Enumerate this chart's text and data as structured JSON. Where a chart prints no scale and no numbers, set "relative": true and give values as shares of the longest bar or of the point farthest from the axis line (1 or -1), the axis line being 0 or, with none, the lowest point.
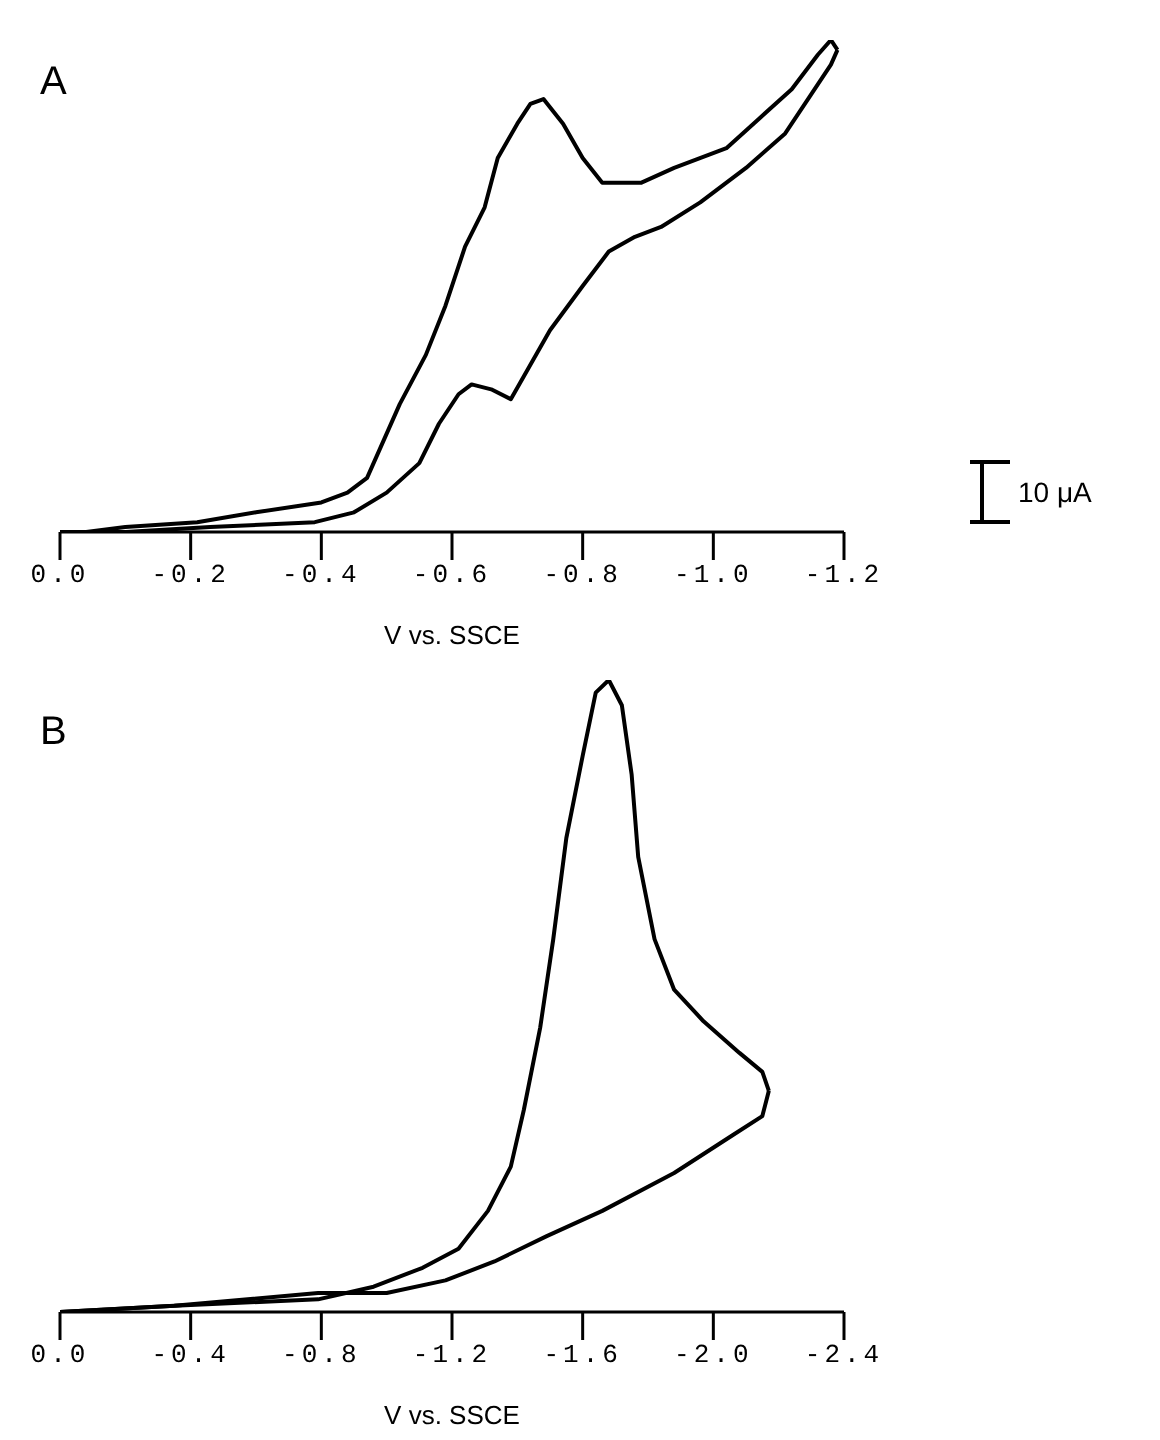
{
  "chart_data": [
    {
      "type": "line",
      "title": "A",
      "xlabel": "V vs. SSCE",
      "relative": true,
      "annotations": [
        "10 μA"
      ],
      "series": [
        {
          "color": "#000000",
          "x": [
            0,
            -0.1,
            -0.23,
            -0.39,
            -0.45,
            -0.5,
            -0.55,
            -0.58,
            -0.61,
            -0.63,
            -0.66,
            -0.69,
            -0.72,
            -0.75,
            -0.8,
            -0.84,
            -0.88,
            -0.92,
            -0.98,
            -1.05,
            -1.11,
            -1.15,
            -1.18,
            -1.19
          ],
          "values": [
            0,
            0,
            0.01,
            0.02,
            0.04,
            0.08,
            0.14,
            0.22,
            0.28,
            0.3,
            0.29,
            0.27,
            0.34,
            0.41,
            0.5,
            0.57,
            0.6,
            0.62,
            0.67,
            0.74,
            0.81,
            0.89,
            0.95,
            0.98
          ]
        },
        {
          "color": "#000000",
          "x": [
            -1.19,
            -1.18,
            -1.16,
            -1.12,
            -1.07,
            -1.02,
            -0.94,
            -0.89,
            -0.83,
            -0.8,
            -0.77,
            -0.74,
            -0.72,
            -0.7,
            -0.67,
            -0.65,
            -0.62,
            -0.59,
            -0.56,
            -0.52,
            -0.49,
            -0.47,
            -0.44,
            -0.4,
            -0.3,
            -0.21,
            -0.1,
            -0.04,
            0
          ],
          "values": [
            0.98,
            1,
            0.97,
            0.9,
            0.84,
            0.78,
            0.74,
            0.71,
            0.71,
            0.76,
            0.83,
            0.88,
            0.87,
            0.83,
            0.76,
            0.66,
            0.58,
            0.46,
            0.36,
            0.26,
            0.17,
            0.11,
            0.08,
            0.06,
            0.04,
            0.02,
            0.01,
            0,
            0
          ]
        }
      ],
      "xlim": [
        0,
        -1.2
      ],
      "xticks": [
        {
          "value": 0,
          "label": "0.0"
        },
        {
          "value": -0.2,
          "label": "-0.2"
        },
        {
          "value": -0.4,
          "label": "-0.4"
        },
        {
          "value": -0.6,
          "label": "-0.6"
        },
        {
          "value": -0.8,
          "label": "-0.8"
        },
        {
          "value": -1,
          "label": "-1.0"
        },
        {
          "value": -1.2,
          "label": "-1.2"
        }
      ]
    },
    {
      "type": "line",
      "title": "B",
      "xlabel": "V vs. SSCE",
      "relative": true,
      "series": [
        {
          "color": "#000000",
          "x": [
            0,
            -0.35,
            -0.79,
            -1,
            -1.18,
            -1.33,
            -1.49,
            -1.66,
            -1.88,
            -2.06,
            -2.15,
            -2.17
          ],
          "values": [
            0,
            0.01,
            0.03,
            0.03,
            0.05,
            0.08,
            0.12,
            0.16,
            0.22,
            0.28,
            0.31,
            0.35
          ]
        },
        {
          "color": "#000000",
          "x": [
            -2.17,
            -2.15,
            -2.08,
            -1.97,
            -1.88,
            -1.82,
            -1.77,
            -1.75,
            -1.72,
            -1.68,
            -1.64,
            -1.6,
            -1.55,
            -1.51,
            -1.47,
            -1.42,
            -1.38,
            -1.31,
            -1.22,
            -1.11,
            -0.96,
            -0.79,
            -0.35,
            0
          ],
          "values": [
            0.35,
            0.38,
            0.41,
            0.46,
            0.51,
            0.59,
            0.72,
            0.85,
            0.96,
            1,
            0.98,
            0.88,
            0.75,
            0.59,
            0.45,
            0.32,
            0.23,
            0.16,
            0.1,
            0.07,
            0.04,
            0.02,
            0.01,
            0
          ]
        }
      ],
      "xlim": [
        0,
        -2.4
      ],
      "xticks": [
        {
          "value": 0,
          "label": "0.0"
        },
        {
          "value": -0.4,
          "label": "-0.4"
        },
        {
          "value": -0.8,
          "label": "-0.8"
        },
        {
          "value": -1.2,
          "label": "-1.2"
        },
        {
          "value": -1.6,
          "label": "-1.6"
        },
        {
          "value": -2,
          "label": "-2.0"
        },
        {
          "value": -2.4,
          "label": "-2.4"
        }
      ]
    }
  ]
}
